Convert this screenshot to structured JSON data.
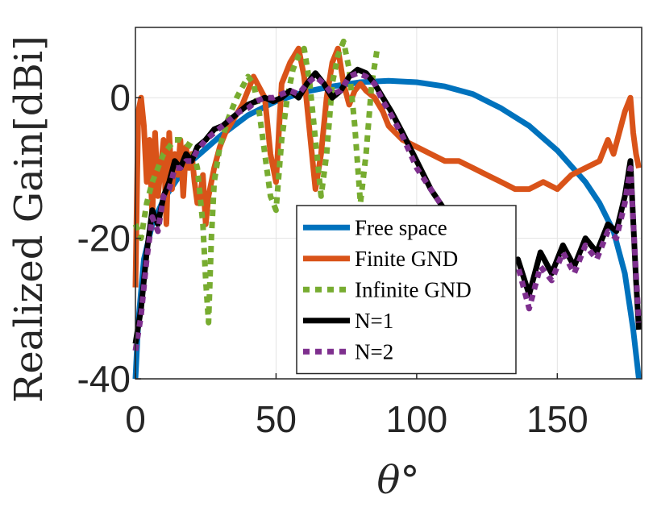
{
  "chart_data": {
    "type": "line",
    "xlabel": "θ°",
    "ylabel": "Realized Gain[dBi]",
    "xlim": [
      0,
      180
    ],
    "ylim": [
      -40,
      10
    ],
    "xticks": [
      0,
      50,
      100,
      150
    ],
    "yticks": [
      0,
      -20,
      -40
    ],
    "xtick_labels": [
      "0",
      "50",
      "100",
      "150"
    ],
    "ytick_labels": [
      "0",
      "-20",
      "-40"
    ],
    "grid": true,
    "legend_position": "bottom-center",
    "series": [
      {
        "name": "Free space",
        "color": "#0072BD",
        "dash": "solid",
        "x": [
          0,
          1,
          3,
          6,
          10,
          15,
          20,
          30,
          40,
          50,
          60,
          70,
          80,
          90,
          100,
          110,
          120,
          130,
          140,
          150,
          160,
          165,
          170,
          174,
          177,
          179
        ],
        "y": [
          -40,
          -32,
          -23,
          -18,
          -14.5,
          -11.5,
          -9,
          -5.5,
          -2.5,
          -0.5,
          0.8,
          1.6,
          2.2,
          2.4,
          2.2,
          1.6,
          0.5,
          -1.5,
          -4,
          -7.5,
          -12,
          -15,
          -19,
          -25,
          -33,
          -40
        ]
      },
      {
        "name": "Finite GND",
        "color": "#D95319",
        "dash": "solid",
        "x": [
          0,
          1,
          2,
          3,
          4,
          5,
          6,
          7,
          8,
          9,
          10,
          11,
          12,
          13,
          14,
          15,
          16,
          17,
          18,
          19,
          20,
          21,
          22,
          23,
          24,
          25,
          26,
          27,
          28,
          30,
          32,
          35,
          38,
          42,
          46,
          48,
          50,
          52,
          55,
          58,
          60,
          62,
          64,
          66,
          68,
          70,
          72,
          74,
          76,
          78,
          80,
          82,
          85,
          88,
          90,
          95,
          100,
          105,
          110,
          115,
          120,
          125,
          130,
          135,
          140,
          145,
          150,
          155,
          160,
          165,
          168,
          170,
          172,
          174,
          176,
          177,
          178,
          179
        ],
        "y": [
          -27,
          -2,
          0,
          -4,
          -12,
          -6,
          -17,
          -5,
          -14,
          -10,
          -6,
          -18,
          -5,
          -13,
          -8,
          -11,
          -6,
          -14,
          -7,
          -10,
          -8,
          -12,
          -15,
          -14,
          -11,
          -18,
          -14,
          -12,
          -10,
          -7,
          -5,
          -3,
          -1,
          3,
          0,
          -8,
          -12,
          2,
          5,
          7,
          3,
          -5,
          -13,
          -8,
          0,
          5,
          7,
          2,
          -1,
          1,
          2,
          1,
          0,
          -2,
          -4,
          -6,
          -7,
          -8,
          -9,
          -9,
          -10,
          -11,
          -12,
          -13,
          -13,
          -12,
          -13,
          -11,
          -10,
          -9,
          -6,
          -8,
          -5,
          -2,
          0,
          -5,
          -8,
          -10
        ]
      },
      {
        "name": "Infinite GND",
        "color": "#77AC30",
        "dash": "dotted",
        "x": [
          0,
          2,
          4,
          6,
          8,
          10,
          12,
          14,
          16,
          18,
          20,
          22,
          24,
          25,
          26,
          27,
          28,
          30,
          33,
          36,
          40,
          42,
          44,
          46,
          48,
          50,
          52,
          54,
          56,
          58,
          60,
          62,
          64,
          66,
          68,
          70,
          72,
          74,
          76,
          78,
          80,
          82,
          84,
          86
        ],
        "y": [
          -18,
          -20,
          -15,
          -12,
          -10,
          -8,
          -7,
          -6,
          -6,
          -6.5,
          -7,
          -10,
          -18,
          -26,
          -32,
          -20,
          -12,
          -7,
          -3,
          0,
          3,
          2,
          -2,
          -8,
          -14,
          -16,
          -6,
          0,
          4,
          6,
          7,
          2,
          -6,
          -14,
          -8,
          2,
          6,
          8,
          4,
          -4,
          -15,
          -8,
          2,
          7
        ]
      },
      {
        "name": "N=1",
        "color": "#000000",
        "dash": "solid",
        "x": [
          0,
          2,
          4,
          6,
          8,
          10,
          12,
          14,
          16,
          18,
          20,
          22,
          25,
          28,
          31,
          34,
          37,
          40,
          43,
          46,
          49,
          52,
          55,
          58,
          61,
          64,
          67,
          70,
          73,
          76,
          79,
          82,
          85,
          88,
          91,
          95,
          100,
          105,
          110,
          115,
          120,
          124,
          128,
          132,
          136,
          140,
          144,
          148,
          152,
          156,
          160,
          164,
          168,
          171,
          174,
          176,
          178,
          179
        ],
        "y": [
          -35,
          -30,
          -22,
          -16,
          -18,
          -14,
          -12,
          -9,
          -10,
          -8,
          -9,
          -7,
          -6,
          -4.5,
          -4,
          -3,
          -2,
          -1,
          -0.5,
          0,
          -0.5,
          0,
          1,
          0,
          2,
          3.5,
          2,
          0,
          1,
          3,
          4,
          3.5,
          2,
          0,
          -2,
          -5,
          -9,
          -13,
          -16,
          -17,
          -19,
          -22,
          -20,
          -24,
          -23,
          -28,
          -22,
          -25,
          -21,
          -24,
          -20,
          -22,
          -18,
          -19,
          -14,
          -9,
          -26,
          -33
        ]
      },
      {
        "name": "N=2",
        "color": "#7E2F8E",
        "dash": "dotted",
        "x": [
          0,
          2,
          4,
          6,
          8,
          10,
          12,
          14,
          16,
          18,
          20,
          22,
          25,
          28,
          31,
          34,
          37,
          40,
          43,
          46,
          49,
          52,
          55,
          58,
          61,
          64,
          67,
          70,
          73,
          76,
          79,
          82,
          85,
          88,
          91,
          95,
          100,
          105,
          110,
          115,
          120,
          124,
          128,
          132,
          136,
          140,
          144,
          148,
          152,
          156,
          160,
          164,
          168,
          171,
          174,
          176,
          178,
          179
        ],
        "y": [
          -36,
          -31,
          -23,
          -17,
          -19,
          -14,
          -13,
          -10,
          -10,
          -9,
          -9,
          -7.5,
          -6,
          -5,
          -4,
          -3,
          -2,
          -1.5,
          -0.5,
          0,
          0,
          0.5,
          1,
          0.5,
          2,
          3,
          2,
          0.5,
          1,
          3,
          3.5,
          3,
          2,
          -0.5,
          -2.5,
          -5.5,
          -10,
          -13,
          -16,
          -18,
          -20,
          -22,
          -21,
          -25,
          -24,
          -30,
          -24,
          -26,
          -22,
          -25,
          -21,
          -23,
          -19,
          -20,
          -15,
          -10,
          -25,
          -32
        ]
      }
    ]
  }
}
